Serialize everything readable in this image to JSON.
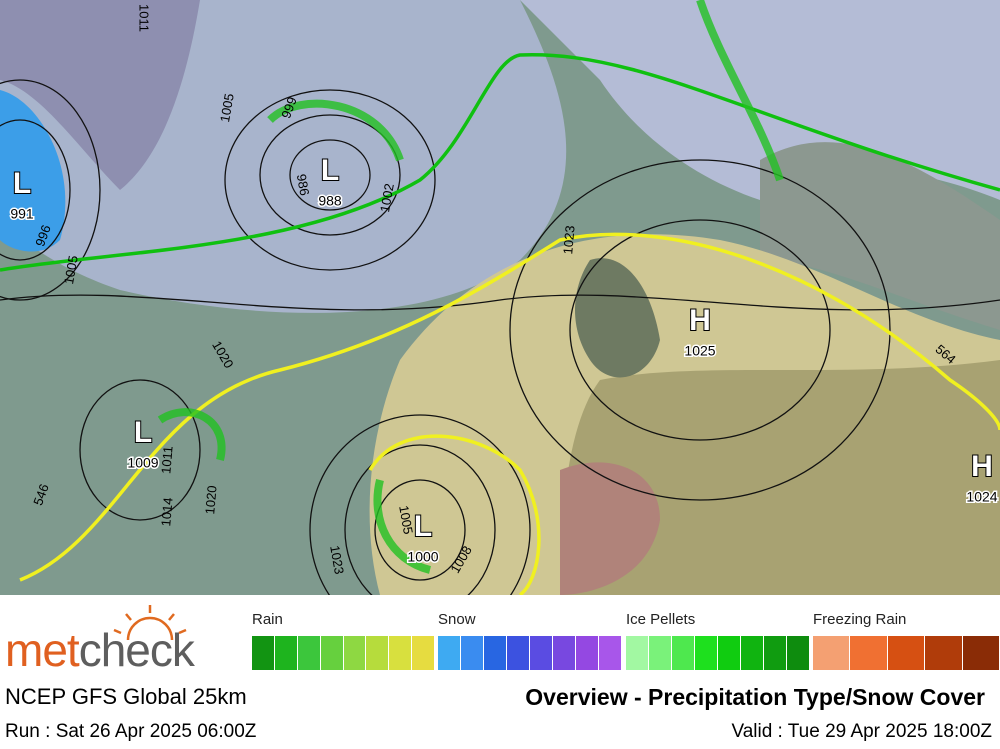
{
  "map": {
    "pressure_centers": [
      {
        "symbol": "L",
        "value": 991
      },
      {
        "symbol": "L",
        "value": 988
      },
      {
        "symbol": "H",
        "value": 1025
      },
      {
        "symbol": "L",
        "value": 1009
      },
      {
        "symbol": "L",
        "value": 1000
      },
      {
        "symbol": "H",
        "value": 1024
      }
    ],
    "isobar_labels": [
      1011,
      1005,
      999,
      996,
      986,
      1002,
      1005,
      1023,
      1020,
      1011,
      1014,
      1020,
      1005,
      1008,
      1023,
      564,
      546
    ]
  },
  "legend": {
    "groups": [
      {
        "name": "Rain",
        "colors": [
          "#129412",
          "#1eb41e",
          "#3cc63c",
          "#66d03e",
          "#8ed842",
          "#b6dc3c",
          "#d8e03e",
          "#e6dc40"
        ]
      },
      {
        "name": "Snow",
        "colors": [
          "#3eaaf2",
          "#3a8cf0",
          "#2866e2",
          "#3c52e0",
          "#5a4ce2",
          "#7848e0",
          "#9448e2",
          "#a856ea"
        ]
      },
      {
        "name": "Ice Pellets",
        "colors": [
          "#a2f8a2",
          "#7af27a",
          "#4ee84e",
          "#1ee01e",
          "#10cc10",
          "#10b410",
          "#109c10",
          "#0e8c0e"
        ]
      },
      {
        "name": "Freezing Rain",
        "colors": [
          "#f4a072",
          "#f07032",
          "#d65012",
          "#b03c0a",
          "#8a2c06"
        ]
      }
    ]
  },
  "footer": {
    "brand_a": "met",
    "brand_b": "check",
    "model": "NCEP GFS Global 25km",
    "title": "Overview - Precipitation Type/Snow Cover",
    "run": "Run : Sat 26 Apr 2025 06:00Z",
    "valid": "Valid : Tue 29 Apr 2025 18:00Z"
  }
}
